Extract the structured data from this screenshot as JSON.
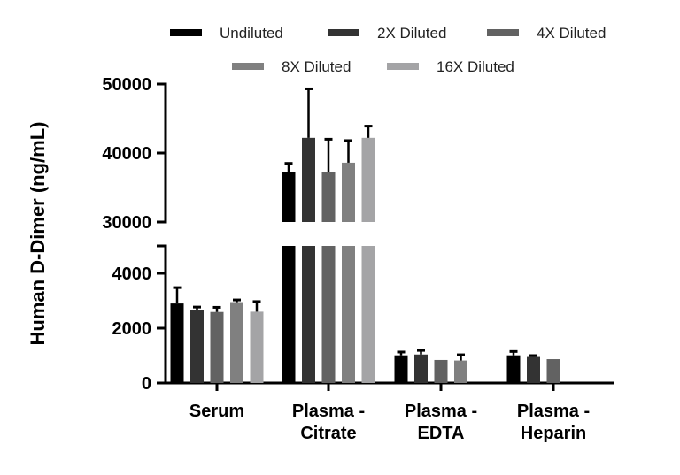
{
  "chart_data": {
    "type": "bar",
    "title": "",
    "xlabel": "",
    "ylabel": "Human D-Dimer (ng/mL)",
    "y_axis_break": {
      "lower_segment": [
        0,
        5000
      ],
      "upper_segment": [
        30000,
        50000
      ]
    },
    "yticks_lower": [
      "0",
      "2000",
      "4000"
    ],
    "yticks_upper": [
      "30000",
      "40000",
      "50000"
    ],
    "categories": [
      [
        "Serum"
      ],
      [
        "Plasma -",
        "Citrate"
      ],
      [
        "Plasma -",
        "EDTA"
      ],
      [
        "Plasma -",
        "Heparin"
      ]
    ],
    "legend_position": "top",
    "grid": false,
    "series": [
      {
        "name": "Undiluted",
        "color": "#000000",
        "values": [
          2900,
          37300,
          1010,
          1010
        ],
        "error_upper": [
          3480,
          38500,
          1130,
          1150
        ]
      },
      {
        "name": "2X Diluted",
        "color": "#333333",
        "values": [
          2650,
          42200,
          1040,
          950
        ],
        "error_upper": [
          2770,
          49300,
          1190,
          1000
        ]
      },
      {
        "name": "4X Diluted",
        "color": "#626262",
        "values": [
          2590,
          37300,
          840,
          870
        ],
        "error_upper": [
          2760,
          42000,
          null,
          null
        ]
      },
      {
        "name": "8X Diluted",
        "color": "#808080",
        "values": [
          2950,
          38600,
          820,
          null
        ],
        "error_upper": [
          3030,
          41800,
          1030,
          null
        ]
      },
      {
        "name": "16X Diluted",
        "color": "#a4a4a6",
        "values": [
          2600,
          42200,
          null,
          null
        ],
        "error_upper": [
          2970,
          43900,
          null,
          null
        ]
      }
    ]
  }
}
